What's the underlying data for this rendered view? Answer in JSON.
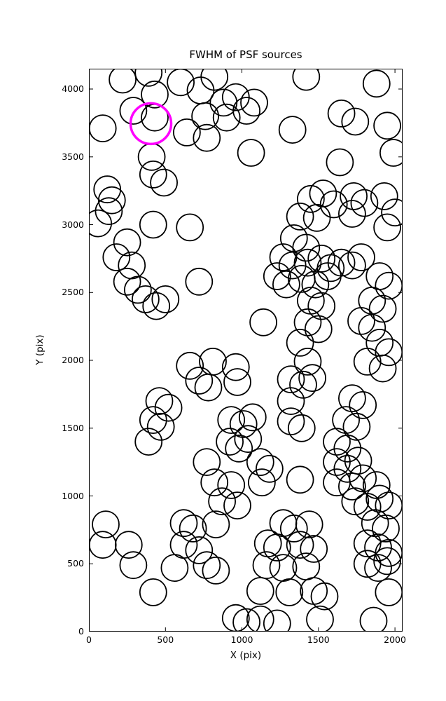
{
  "figure": {
    "background": "#ffffff",
    "axes_color": "#000000"
  },
  "chart_data": {
    "type": "scatter",
    "title": "FWHM of PSF sources",
    "xlabel": "X (pix)",
    "ylabel": "Y (pix)",
    "xlim": [
      0,
      2050
    ],
    "ylim": [
      0,
      4150
    ],
    "xticks": [
      0,
      500,
      1000,
      1500,
      2000
    ],
    "yticks": [
      0,
      500,
      1000,
      1500,
      2000,
      2500,
      3000,
      3500,
      4000
    ],
    "grid": false,
    "legend": "none",
    "marker": {
      "shape": "circle",
      "fill": "none",
      "stroke": "#000000",
      "stroke_width": 1.8,
      "radius_px": 19
    },
    "highlight": {
      "x": 405,
      "y": 3745,
      "stroke": "#ff00ff",
      "stroke_width": 3.5,
      "radius_px": 29
    },
    "points": [
      [
        220,
        4070
      ],
      [
        390,
        4120
      ],
      [
        430,
        3960
      ],
      [
        600,
        4050
      ],
      [
        730,
        3990
      ],
      [
        820,
        4090
      ],
      [
        880,
        3900
      ],
      [
        960,
        3940
      ],
      [
        1080,
        3900
      ],
      [
        1420,
        4090
      ],
      [
        1880,
        4040
      ],
      [
        290,
        3840
      ],
      [
        430,
        3790
      ],
      [
        760,
        3800
      ],
      [
        900,
        3790
      ],
      [
        1030,
        3840
      ],
      [
        1650,
        3820
      ],
      [
        1740,
        3760
      ],
      [
        90,
        3710
      ],
      [
        640,
        3680
      ],
      [
        770,
        3640
      ],
      [
        1330,
        3700
      ],
      [
        1950,
        3730
      ],
      [
        410,
        3500
      ],
      [
        1060,
        3530
      ],
      [
        1640,
        3460
      ],
      [
        1990,
        3530
      ],
      [
        420,
        3370
      ],
      [
        490,
        3310
      ],
      [
        120,
        3260
      ],
      [
        150,
        3180
      ],
      [
        130,
        3100
      ],
      [
        1450,
        3190
      ],
      [
        1530,
        3230
      ],
      [
        1600,
        3150
      ],
      [
        1730,
        3210
      ],
      [
        1800,
        3160
      ],
      [
        1930,
        3210
      ],
      [
        2000,
        3090
      ],
      [
        60,
        3010
      ],
      [
        420,
        3000
      ],
      [
        660,
        2980
      ],
      [
        1380,
        3060
      ],
      [
        1490,
        3050
      ],
      [
        1720,
        3080
      ],
      [
        1950,
        2980
      ],
      [
        250,
        2870
      ],
      [
        1340,
        2900
      ],
      [
        1420,
        2830
      ],
      [
        180,
        2760
      ],
      [
        280,
        2700
      ],
      [
        1270,
        2760
      ],
      [
        1330,
        2700
      ],
      [
        1430,
        2720
      ],
      [
        1520,
        2750
      ],
      [
        1580,
        2680
      ],
      [
        1650,
        2720
      ],
      [
        1720,
        2700
      ],
      [
        1780,
        2760
      ],
      [
        250,
        2580
      ],
      [
        320,
        2520
      ],
      [
        720,
        2580
      ],
      [
        1230,
        2620
      ],
      [
        1290,
        2560
      ],
      [
        1390,
        2600
      ],
      [
        1480,
        2560
      ],
      [
        1560,
        2620
      ],
      [
        1900,
        2620
      ],
      [
        1960,
        2550
      ],
      [
        370,
        2450
      ],
      [
        440,
        2400
      ],
      [
        500,
        2450
      ],
      [
        1450,
        2440
      ],
      [
        1520,
        2400
      ],
      [
        1850,
        2440
      ],
      [
        1920,
        2380
      ],
      [
        1140,
        2280
      ],
      [
        1430,
        2280
      ],
      [
        1500,
        2230
      ],
      [
        1780,
        2290
      ],
      [
        1850,
        2240
      ],
      [
        1380,
        2130
      ],
      [
        1900,
        2130
      ],
      [
        1960,
        2060
      ],
      [
        660,
        1960
      ],
      [
        810,
        1990
      ],
      [
        960,
        1950
      ],
      [
        1430,
        1990
      ],
      [
        1820,
        1990
      ],
      [
        1920,
        1940
      ],
      [
        720,
        1850
      ],
      [
        780,
        1800
      ],
      [
        970,
        1840
      ],
      [
        1320,
        1860
      ],
      [
        1400,
        1820
      ],
      [
        1460,
        1870
      ],
      [
        460,
        1700
      ],
      [
        520,
        1650
      ],
      [
        1320,
        1700
      ],
      [
        1720,
        1720
      ],
      [
        1790,
        1670
      ],
      [
        420,
        1560
      ],
      [
        470,
        1510
      ],
      [
        930,
        1560
      ],
      [
        1010,
        1530
      ],
      [
        1070,
        1580
      ],
      [
        1320,
        1550
      ],
      [
        1390,
        1500
      ],
      [
        1680,
        1560
      ],
      [
        1750,
        1510
      ],
      [
        390,
        1400
      ],
      [
        920,
        1400
      ],
      [
        980,
        1350
      ],
      [
        1040,
        1420
      ],
      [
        1620,
        1400
      ],
      [
        1690,
        1350
      ],
      [
        770,
        1250
      ],
      [
        1120,
        1250
      ],
      [
        1180,
        1200
      ],
      [
        1620,
        1250
      ],
      [
        1690,
        1200
      ],
      [
        1760,
        1260
      ],
      [
        820,
        1100
      ],
      [
        930,
        1080
      ],
      [
        1130,
        1100
      ],
      [
        1380,
        1120
      ],
      [
        1620,
        1100
      ],
      [
        1720,
        1070
      ],
      [
        1790,
        1130
      ],
      [
        1880,
        1080
      ],
      [
        870,
        960
      ],
      [
        970,
        930
      ],
      [
        1740,
        960
      ],
      [
        1820,
        920
      ],
      [
        1900,
        980
      ],
      [
        1960,
        930
      ],
      [
        110,
        790
      ],
      [
        620,
        800
      ],
      [
        680,
        760
      ],
      [
        830,
        790
      ],
      [
        1270,
        800
      ],
      [
        1340,
        760
      ],
      [
        1440,
        790
      ],
      [
        1870,
        800
      ],
      [
        1940,
        760
      ],
      [
        90,
        640
      ],
      [
        260,
        640
      ],
      [
        620,
        640
      ],
      [
        720,
        600
      ],
      [
        1170,
        650
      ],
      [
        1230,
        620
      ],
      [
        1380,
        640
      ],
      [
        1470,
        610
      ],
      [
        1820,
        650
      ],
      [
        1890,
        620
      ],
      [
        1960,
        580
      ],
      [
        290,
        490
      ],
      [
        560,
        470
      ],
      [
        770,
        490
      ],
      [
        830,
        450
      ],
      [
        1160,
        490
      ],
      [
        1270,
        470
      ],
      [
        1420,
        480
      ],
      [
        1820,
        500
      ],
      [
        1890,
        470
      ],
      [
        1950,
        520
      ],
      [
        420,
        290
      ],
      [
        1120,
        300
      ],
      [
        1310,
        290
      ],
      [
        1470,
        300
      ],
      [
        1540,
        260
      ],
      [
        1960,
        290
      ],
      [
        960,
        100
      ],
      [
        1030,
        70
      ],
      [
        1120,
        90
      ],
      [
        1230,
        60
      ],
      [
        1510,
        90
      ],
      [
        1860,
        80
      ]
    ]
  }
}
